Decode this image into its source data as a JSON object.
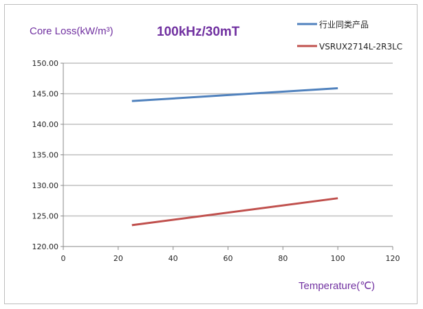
{
  "chart_data": {
    "type": "line",
    "title": "100kHz/30mT",
    "ylabel": "Core Loss(kW/m³)",
    "xlabel": "Temperature(℃)",
    "xlim": [
      0,
      120
    ],
    "ylim": [
      120,
      150
    ],
    "xticks": [
      "0",
      "20",
      "40",
      "60",
      "80",
      "100",
      "120"
    ],
    "yticks": [
      "120.00",
      "125.00",
      "130.00",
      "135.00",
      "140.00",
      "145.00",
      "150.00"
    ],
    "grid": "horizontal",
    "legend_position": "top-right",
    "series": [
      {
        "name": "行业同类产品",
        "color": "#4f81bd",
        "x": [
          25,
          100
        ],
        "y": [
          143.8,
          145.9
        ]
      },
      {
        "name": "VSRUX2714L-2R3LC",
        "color": "#c0504d",
        "x": [
          25,
          100
        ],
        "y": [
          123.5,
          127.9
        ]
      }
    ]
  }
}
